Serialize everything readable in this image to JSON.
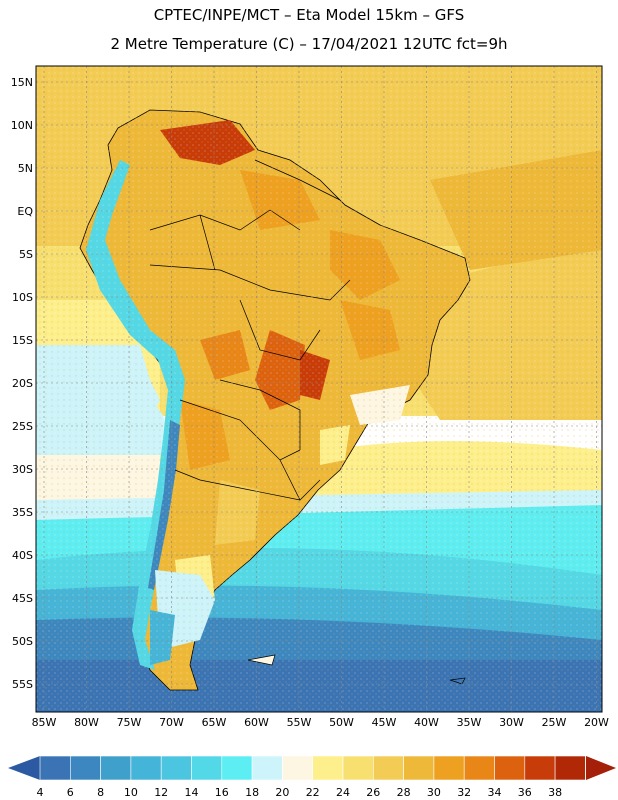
{
  "title": {
    "line1": "CPTEC/INPE/MCT –   Eta Model 15km – GFS",
    "line2": "2 Metre Temperature (C) – 17/04/2021 12UTC fct=9h"
  },
  "map": {
    "region": "South America",
    "lat_labels": [
      "15N",
      "10N",
      "5N",
      "EQ",
      "5S",
      "10S",
      "15S",
      "20S",
      "25S",
      "30S",
      "35S",
      "40S",
      "45S",
      "50S",
      "55S"
    ],
    "lon_labels": [
      "85W",
      "80W",
      "75W",
      "70W",
      "65W",
      "60W",
      "55W",
      "50W",
      "45W",
      "40W",
      "35W",
      "30W",
      "25W",
      "20W"
    ]
  },
  "colorbar": {
    "ticks": [
      "4",
      "6",
      "8",
      "10",
      "12",
      "14",
      "16",
      "18",
      "20",
      "22",
      "24",
      "26",
      "28",
      "30",
      "32",
      "34",
      "36",
      "38"
    ],
    "colors": [
      "#3a74b4",
      "#3d87c0",
      "#40a0cc",
      "#44b4d8",
      "#4cc6e0",
      "#52d8e6",
      "#5ceef2",
      "#ccf4fa",
      "#fdf6e2",
      "#fdf08c",
      "#f7e070",
      "#f3cc55",
      "#eeb838",
      "#eea020",
      "#e88618",
      "#dc6210",
      "#c83c0a",
      "#b02806"
    ],
    "low_arrow_color": "#2c5aa2",
    "high_arrow_color": "#a52008"
  }
}
